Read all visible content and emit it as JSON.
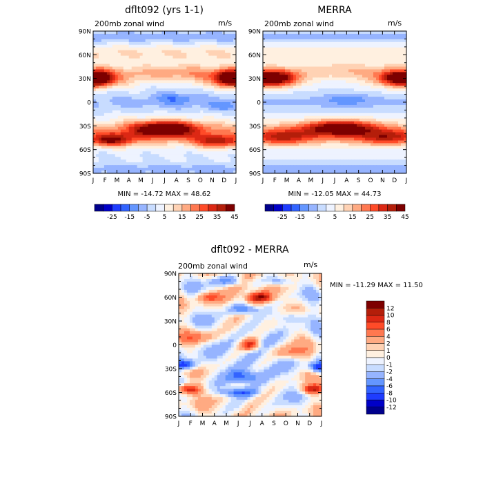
{
  "chart_data": [
    {
      "type": "heatmap",
      "title": "dflt092 (yrs 1-1)",
      "subtitle": "200mb zonal wind",
      "units": "m/s",
      "x_ticks": [
        "J",
        "F",
        "M",
        "A",
        "M",
        "J",
        "J",
        "A",
        "S",
        "O",
        "N",
        "D",
        "J"
      ],
      "y_ticks": [
        "90N",
        "60N",
        "30N",
        "0",
        "30S",
        "60S",
        "90S"
      ],
      "ylim": [
        -90,
        90
      ],
      "stats": "MIN = -14.72 MAX =  48.62",
      "colorbar_labels": [
        "-25",
        "-15",
        "-5",
        "5",
        "15",
        "25",
        "35",
        "45"
      ],
      "colorbar_orientation": "horizontal",
      "features": [
        {
          "lat": 30,
          "month": 0.3,
          "value": 45,
          "lat_width": 10,
          "month_width": 1.2
        },
        {
          "lat": 30,
          "month": 11.7,
          "value": 42,
          "lat_width": 10,
          "month_width": 1.2
        },
        {
          "lat": 38,
          "month": 6.5,
          "value": 15,
          "lat_width": 10,
          "month_width": 3.5
        },
        {
          "lat": 5,
          "month": 7.0,
          "value": -10,
          "lat_width": 8,
          "month_width": 1.8
        },
        {
          "lat": -33,
          "month": 6.0,
          "value": 35,
          "lat_width": 9,
          "month_width": 2.5
        },
        {
          "lat": -48,
          "month": 1.5,
          "value": 32,
          "lat_width": 8,
          "month_width": 2.0
        },
        {
          "lat": -50,
          "month": 10.5,
          "value": 30,
          "lat_width": 8,
          "month_width": 2.0
        },
        {
          "lat": -5,
          "month": 11.0,
          "value": -8,
          "lat_width": 6,
          "month_width": 1.5
        }
      ]
    },
    {
      "type": "heatmap",
      "title": "MERRA",
      "subtitle": "200mb zonal wind",
      "units": "m/s",
      "x_ticks": [
        "J",
        "F",
        "M",
        "A",
        "M",
        "J",
        "J",
        "A",
        "S",
        "O",
        "N",
        "D",
        "J"
      ],
      "y_ticks": [
        "90N",
        "60N",
        "30N",
        "0",
        "30S",
        "60S",
        "90S"
      ],
      "ylim": [
        -90,
        90
      ],
      "stats": "MIN = -12.05 MAX =  44.73",
      "colorbar_labels": [
        "-25",
        "-15",
        "-5",
        "5",
        "15",
        "25",
        "35",
        "45"
      ],
      "colorbar_orientation": "horizontal",
      "features": [
        {
          "lat": 30,
          "month": 0.8,
          "value": 38,
          "lat_width": 10,
          "month_width": 1.8
        },
        {
          "lat": 30,
          "month": 11.5,
          "value": 35,
          "lat_width": 10,
          "month_width": 1.5
        },
        {
          "lat": 40,
          "month": 6.5,
          "value": 12,
          "lat_width": 10,
          "month_width": 3.5
        },
        {
          "lat": 3,
          "month": 7.0,
          "value": -9,
          "lat_width": 7,
          "month_width": 2.0
        },
        {
          "lat": -32,
          "month": 6.5,
          "value": 32,
          "lat_width": 9,
          "month_width": 2.8
        },
        {
          "lat": -45,
          "month": 1.5,
          "value": 25,
          "lat_width": 10,
          "month_width": 2.5
        },
        {
          "lat": -45,
          "month": 10.5,
          "value": 25,
          "lat_width": 10,
          "month_width": 2.5
        }
      ]
    },
    {
      "type": "heatmap",
      "title": "dflt092 - MERRA",
      "subtitle": "200mb zonal wind",
      "units": "m/s",
      "x_ticks": [
        "J",
        "F",
        "M",
        "A",
        "M",
        "J",
        "J",
        "A",
        "S",
        "O",
        "N",
        "D",
        "J"
      ],
      "y_ticks": [
        "90N",
        "60N",
        "30N",
        "0",
        "30S",
        "60S",
        "90S"
      ],
      "ylim": [
        -90,
        90
      ],
      "stats": "MIN = -11.29 MAX =  11.50",
      "colorbar_labels": [
        "12",
        "10",
        "8",
        "6",
        "4",
        "2",
        "1",
        "0",
        "-1",
        "-2",
        "-4",
        "-6",
        "-8",
        "-10",
        "-12"
      ],
      "colorbar_orientation": "vertical",
      "features": [
        {
          "lat": -56,
          "month": 0.8,
          "value": 11,
          "lat_width": 6,
          "month_width": 1.0
        },
        {
          "lat": -56,
          "month": 11.3,
          "value": 10,
          "lat_width": 6,
          "month_width": 1.0
        },
        {
          "lat": -25,
          "month": 0.5,
          "value": -10,
          "lat_width": 6,
          "month_width": 1.0
        },
        {
          "lat": -28,
          "month": 11.8,
          "value": -9,
          "lat_width": 6,
          "month_width": 0.8
        },
        {
          "lat": 60,
          "month": 6.8,
          "value": 10,
          "lat_width": 6,
          "month_width": 1.0
        },
        {
          "lat": 0,
          "month": 6.0,
          "value": 9,
          "lat_width": 7,
          "month_width": 0.8
        },
        {
          "lat": 45,
          "month": 5.5,
          "value": -8,
          "lat_width": 6,
          "month_width": 1.0
        },
        {
          "lat": 60,
          "month": 2.5,
          "value": 6,
          "lat_width": 6,
          "month_width": 1.0
        },
        {
          "lat": 80,
          "month": 4.0,
          "value": -5,
          "lat_width": 6,
          "month_width": 1.5
        },
        {
          "lat": 80,
          "month": 8.5,
          "value": -5,
          "lat_width": 6,
          "month_width": 1.2
        },
        {
          "lat": 35,
          "month": 9.5,
          "value": -4,
          "lat_width": 8,
          "month_width": 1.5
        },
        {
          "lat": -40,
          "month": 5.5,
          "value": -6,
          "lat_width": 7,
          "month_width": 1.2
        },
        {
          "lat": -60,
          "month": 5.0,
          "value": -7,
          "lat_width": 5,
          "month_width": 1.5
        },
        {
          "lat": -10,
          "month": 9.5,
          "value": 4,
          "lat_width": 8,
          "month_width": 1.5
        },
        {
          "lat": 10,
          "month": 1.5,
          "value": 4,
          "lat_width": 8,
          "month_width": 1.5
        }
      ]
    }
  ],
  "colors": {
    "diverging": [
      "#00008c",
      "#0000c8",
      "#1e3cff",
      "#3264ff",
      "#6496ff",
      "#96b4ff",
      "#c8dcff",
      "#eef3ff",
      "#fff0e0",
      "#ffd2b4",
      "#ffaa82",
      "#ff7850",
      "#ff4b28",
      "#dc2814",
      "#b41e0a",
      "#7d0000"
    ]
  }
}
